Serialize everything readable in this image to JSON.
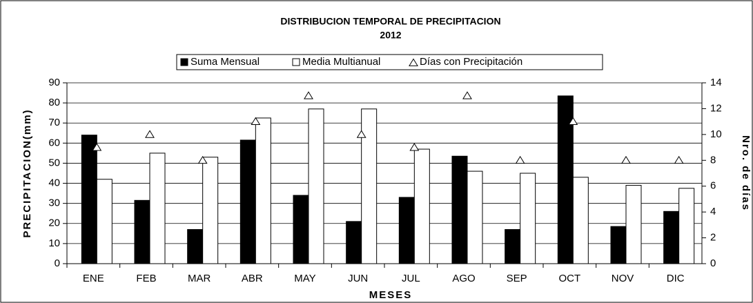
{
  "chart_data": {
    "type": "bar",
    "title": "DISTRIBUCION TEMPORAL DE PRECIPITACION",
    "subtitle": "2012",
    "xlabel": "MESES",
    "ylabel": "PRECIPITACION(mm)",
    "y2label": "Nro. de días",
    "categories": [
      "ENE",
      "FEB",
      "MAR",
      "ABR",
      "MAY",
      "JUN",
      "JUL",
      "AGO",
      "SEP",
      "OCT",
      "NOV",
      "DIC"
    ],
    "series": [
      {
        "name": "Suma Mensual",
        "color": "#000000",
        "values": [
          64,
          31.5,
          17,
          61.5,
          34,
          21,
          33,
          53.5,
          17,
          83.5,
          18.5,
          26
        ]
      },
      {
        "name": "Media Multianual",
        "color": "#ffffff",
        "values": [
          42,
          55,
          53,
          72.5,
          77,
          77,
          57,
          46,
          45,
          43,
          39,
          37.5
        ]
      },
      {
        "name": "Días con Precipitación",
        "color": "#ffffff",
        "type": "scatter",
        "axis": "y2",
        "values": [
          9,
          10,
          8,
          11,
          13,
          10,
          9,
          13,
          8,
          11,
          8,
          8
        ]
      }
    ],
    "ylim": [
      0,
      90
    ],
    "yticks": [
      0,
      10,
      20,
      30,
      40,
      50,
      60,
      70,
      80,
      90
    ],
    "y2lim": [
      0,
      14
    ],
    "y2ticks": [
      0,
      2,
      4,
      6,
      8,
      10,
      12,
      14
    ],
    "grid": true
  }
}
